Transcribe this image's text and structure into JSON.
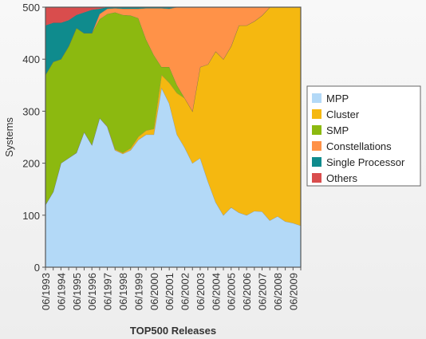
{
  "chart_data": {
    "type": "area",
    "stacked": true,
    "title": "",
    "xlabel": "TOP500 Releases",
    "ylabel": "Systems",
    "ylim": [
      0,
      500
    ],
    "y_ticks": [
      0,
      100,
      200,
      300,
      400,
      500
    ],
    "x_tick_labels": [
      "06/1993",
      "06/1994",
      "06/1995",
      "06/1996",
      "06/1997",
      "06/1998",
      "06/1999",
      "06/2000",
      "06/2001",
      "06/2002",
      "06/2003",
      "06/2004",
      "06/2005",
      "06/2006",
      "06/2007",
      "06/2008",
      "06/2009"
    ],
    "x": [
      "06/1993",
      "11/1993",
      "06/1994",
      "11/1994",
      "06/1995",
      "11/1995",
      "06/1996",
      "11/1996",
      "06/1997",
      "11/1997",
      "06/1998",
      "11/1998",
      "06/1999",
      "11/1999",
      "06/2000",
      "11/2000",
      "06/2001",
      "11/2001",
      "06/2002",
      "11/2002",
      "06/2003",
      "11/2003",
      "06/2004",
      "11/2004",
      "06/2005",
      "11/2005",
      "06/2006",
      "11/2006",
      "06/2007",
      "11/2007",
      "06/2008",
      "11/2008",
      "06/2009",
      "11/2009"
    ],
    "legend_position": "right",
    "grid": false,
    "series": [
      {
        "name": "MPP",
        "color": "#b3d9f7",
        "values": [
          120,
          145,
          200,
          210,
          220,
          260,
          235,
          287,
          270,
          225,
          218,
          225,
          245,
          255,
          255,
          345,
          315,
          255,
          230,
          200,
          210,
          165,
          125,
          100,
          115,
          105,
          100,
          108,
          107,
          90,
          98,
          88,
          85,
          80
        ]
      },
      {
        "name": "Cluster",
        "color": "#f5b810",
        "values": [
          0,
          0,
          0,
          0,
          0,
          0,
          0,
          0,
          1,
          2,
          2,
          4,
          6,
          8,
          11,
          25,
          40,
          80,
          95,
          100,
          175,
          225,
          290,
          300,
          310,
          360,
          365,
          365,
          377,
          410,
          402,
          412,
          415,
          420
        ]
      },
      {
        "name": "SMP",
        "color": "#8cb910",
        "values": [
          250,
          250,
          200,
          215,
          240,
          190,
          215,
          190,
          216,
          263,
          265,
          255,
          228,
          175,
          142,
          15,
          30,
          15,
          0,
          0,
          0,
          0,
          0,
          0,
          0,
          0,
          0,
          0,
          0,
          0,
          0,
          0,
          0,
          0
        ]
      },
      {
        "name": "Constellations",
        "color": "#ff9248",
        "values": [
          0,
          0,
          0,
          0,
          0,
          0,
          0,
          10,
          10,
          8,
          12,
          13,
          18,
          60,
          90,
          113,
          112,
          150,
          175,
          200,
          115,
          110,
          85,
          100,
          75,
          35,
          35,
          27,
          16,
          0,
          0,
          0,
          0,
          0
        ]
      },
      {
        "name": "Single Processor",
        "color": "#0f8b8d",
        "values": [
          95,
          75,
          70,
          50,
          25,
          40,
          45,
          10,
          3,
          2,
          3,
          3,
          3,
          2,
          2,
          2,
          3,
          0,
          0,
          0,
          0,
          0,
          0,
          0,
          0,
          0,
          0,
          0,
          0,
          0,
          0,
          0,
          0,
          0
        ]
      },
      {
        "name": "Others",
        "color": "#d94d4d",
        "values": [
          35,
          30,
          30,
          25,
          15,
          10,
          5,
          3,
          0,
          0,
          0,
          0,
          0,
          0,
          0,
          0,
          0,
          0,
          0,
          0,
          0,
          0,
          0,
          0,
          0,
          0,
          0,
          0,
          0,
          0,
          0,
          0,
          0,
          0
        ]
      }
    ]
  }
}
